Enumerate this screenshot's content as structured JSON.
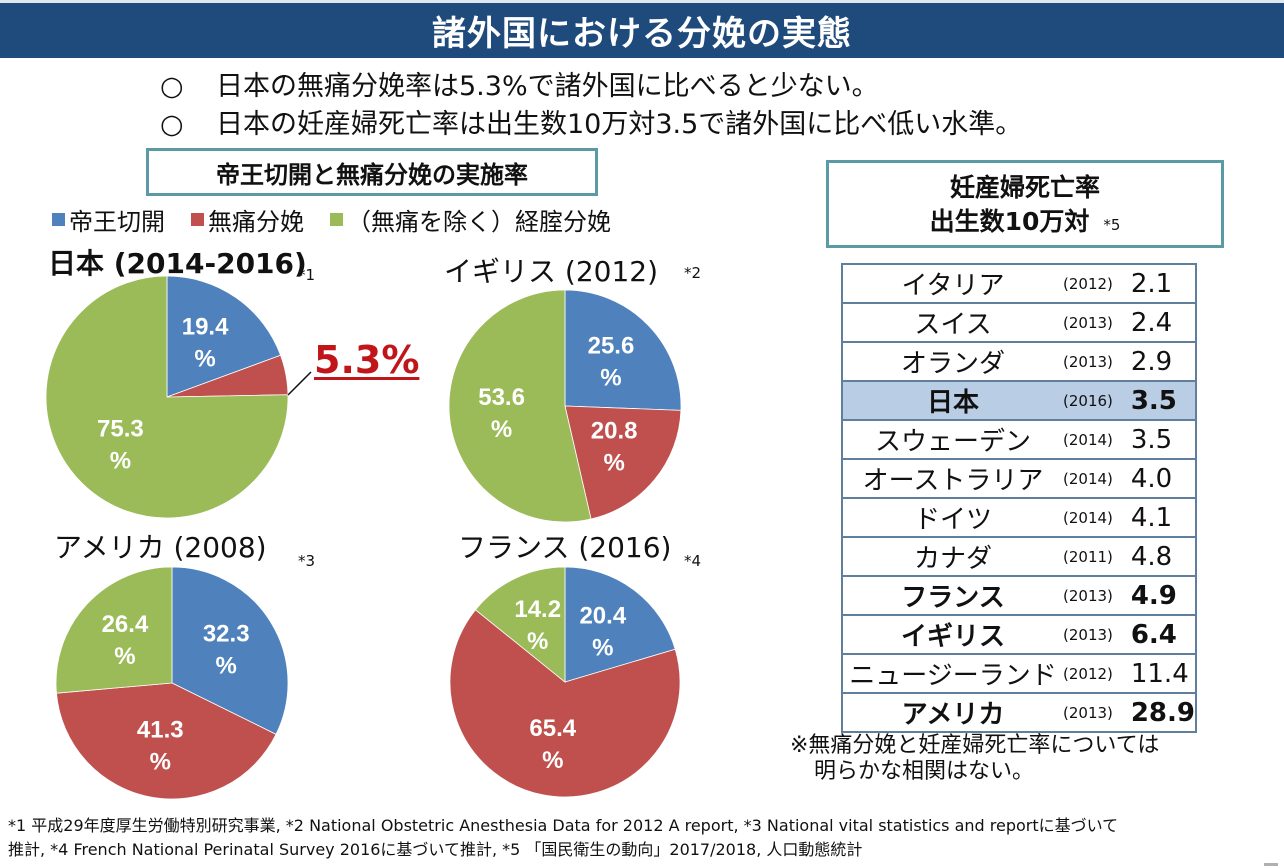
{
  "header": {
    "title": "諸外国における分娩の実態"
  },
  "bullets": [
    {
      "mark": "○",
      "text": "日本の無痛分娩率は5.3%で諸外国に比べると少ない。"
    },
    {
      "mark": "○",
      "text": "日本の妊産婦死亡率は出生数10万対3.5で諸外国に比べ低い水準。"
    }
  ],
  "section_title": "帝王切開と無痛分娩の実施率",
  "legend": [
    {
      "label": "帝王切開",
      "color": "#4f81bd"
    },
    {
      "label": "無痛分娩",
      "color": "#c0504d"
    },
    {
      "label": "（無痛を除く）経腟分娩",
      "color": "#9bbb59"
    }
  ],
  "callout": {
    "text": "5.3%",
    "color": "#c0161a"
  },
  "chart_data": [
    {
      "type": "pie",
      "title": "日本 (2014-2016)",
      "footnote": "*1",
      "categories": [
        "帝王切開",
        "無痛分娩",
        "（無痛を除く）経腟分娩"
      ],
      "values": [
        19.4,
        5.3,
        75.3
      ],
      "labels": [
        "19.4\n%",
        "",
        "75.3\n%"
      ],
      "colors": [
        "#4f81bd",
        "#c0504d",
        "#9bbb59"
      ]
    },
    {
      "type": "pie",
      "title": "イギリス (2012)",
      "footnote": "*2",
      "categories": [
        "帝王切開",
        "無痛分娩",
        "（無痛を除く）経腟分娩"
      ],
      "values": [
        25.6,
        20.8,
        53.6
      ],
      "labels": [
        "25.6\n%",
        "20.8\n%",
        "53.6\n%"
      ],
      "colors": [
        "#4f81bd",
        "#c0504d",
        "#9bbb59"
      ]
    },
    {
      "type": "pie",
      "title": "アメリカ (2008)",
      "footnote": "*3",
      "categories": [
        "帝王切開",
        "無痛分娩",
        "（無痛を除く）経腟分娩"
      ],
      "values": [
        32.3,
        41.3,
        26.4
      ],
      "labels": [
        "32.3\n%",
        "41.3\n%",
        "26.4\n%"
      ],
      "colors": [
        "#4f81bd",
        "#c0504d",
        "#9bbb59"
      ]
    },
    {
      "type": "pie",
      "title": "フランス (2016)",
      "footnote": "*4",
      "categories": [
        "帝王切開",
        "無痛分娩",
        "（無痛を除く）経腟分娩"
      ],
      "values": [
        20.4,
        65.4,
        14.2
      ],
      "labels": [
        "20.4\n%",
        "65.4\n%",
        "14.2\n%"
      ],
      "colors": [
        "#4f81bd",
        "#c0504d",
        "#9bbb59"
      ]
    }
  ],
  "maternal_mortality": {
    "title_line1": "妊産婦死亡率",
    "title_line2": "出生数10万対",
    "footnote": "*5",
    "rows": [
      {
        "country": "イタリア",
        "year": "(2012)",
        "value": "2.1",
        "bold": false,
        "highlight": false
      },
      {
        "country": "スイス",
        "year": "(2013)",
        "value": "2.4",
        "bold": false,
        "highlight": false
      },
      {
        "country": "オランダ",
        "year": "(2013)",
        "value": "2.9",
        "bold": false,
        "highlight": false
      },
      {
        "country": "日本",
        "year": "(2016)",
        "value": "3.5",
        "bold": true,
        "highlight": true
      },
      {
        "country": "スウェーデン",
        "year": "(2014)",
        "value": "3.5",
        "bold": false,
        "highlight": false
      },
      {
        "country": "オーストラリア",
        "year": "(2014)",
        "value": "4.0",
        "bold": false,
        "highlight": false
      },
      {
        "country": "ドイツ",
        "year": "(2014)",
        "value": "4.1",
        "bold": false,
        "highlight": false
      },
      {
        "country": "カナダ",
        "year": "(2011)",
        "value": "4.8",
        "bold": false,
        "highlight": false
      },
      {
        "country": "フランス",
        "year": "(2013)",
        "value": "4.9",
        "bold": true,
        "highlight": false
      },
      {
        "country": "イギリス",
        "year": "(2013)",
        "value": "6.4",
        "bold": true,
        "highlight": false
      },
      {
        "country": "ニュージーランド",
        "year": "(2012)",
        "value": "11.4",
        "bold": false,
        "highlight": false
      },
      {
        "country": "アメリカ",
        "year": "(2013)",
        "value": "28.9",
        "bold": true,
        "highlight": false
      }
    ],
    "highlight_color": "#b9cde4"
  },
  "note": {
    "line1": "※無痛分娩と妊産婦死亡率については",
    "line2": "明らかな相関はない。"
  },
  "sources": {
    "line1": "*1 平成29年度厚生労働特別研究事業, *2  National Obstetric Anesthesia Data for 2012 A report, *3 National vital statistics and reportに基づいて",
    "line2": "推計, *4 French National Perinatal Survey 2016に基づいて推計, *5 「国民衛生の動向」2017/2018, 人口動態統計"
  }
}
